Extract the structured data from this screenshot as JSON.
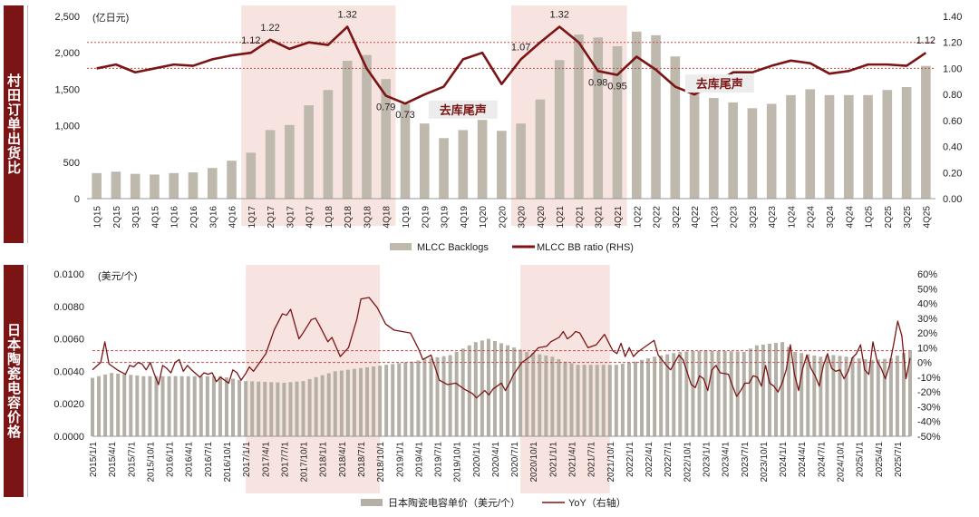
{
  "side_labels": {
    "top": "村田订单出货比",
    "bottom": "日本陶瓷电容价格"
  },
  "colors": {
    "bar": "#bfb9ad",
    "bar_top": "#b5b0a6",
    "line": "#7b1414",
    "shade": "#f7e4e0",
    "ref_line": "#c0504d",
    "side": "#7b1414"
  },
  "chart_data": [
    {
      "type": "bar+line",
      "unit_label": "(亿日元)",
      "categories": [
        "1Q15",
        "2Q15",
        "3Q15",
        "4Q15",
        "1Q16",
        "2Q16",
        "3Q16",
        "4Q16",
        "1Q17",
        "2Q17",
        "3Q17",
        "4Q17",
        "1Q18",
        "2Q18",
        "3Q18",
        "4Q18",
        "1Q19",
        "2Q19",
        "3Q19",
        "4Q19",
        "1Q20",
        "2Q20",
        "3Q20",
        "4Q20",
        "1Q21",
        "2Q21",
        "3Q21",
        "4Q21",
        "1Q22",
        "2Q22",
        "3Q22",
        "4Q22",
        "1Q23",
        "2Q23",
        "3Q23",
        "4Q23",
        "1Q24",
        "2Q24",
        "3Q24",
        "4Q24",
        "1Q25",
        "2Q25",
        "3Q25",
        "4Q25"
      ],
      "series": [
        {
          "name": "MLCC Backlogs",
          "type": "bar",
          "axis": "left",
          "values": [
            350,
            370,
            340,
            330,
            350,
            360,
            420,
            520,
            630,
            940,
            1010,
            1280,
            1490,
            1890,
            1970,
            1640,
            1300,
            1030,
            830,
            940,
            1080,
            930,
            1030,
            1360,
            1900,
            2250,
            2210,
            2090,
            2290,
            2240,
            1950,
            1560,
            1380,
            1320,
            1240,
            1300,
            1420,
            1500,
            1420,
            1420,
            1420,
            1490,
            1530,
            1820
          ]
        },
        {
          "name": "MLCC BB ratio (RHS)",
          "type": "line",
          "axis": "right",
          "values": [
            1.0,
            1.03,
            0.97,
            1.0,
            1.03,
            1.02,
            1.07,
            1.1,
            1.12,
            1.22,
            1.15,
            1.2,
            1.18,
            1.32,
            1.0,
            0.79,
            0.73,
            0.8,
            0.86,
            1.07,
            1.12,
            0.88,
            1.07,
            1.2,
            1.32,
            1.2,
            0.98,
            0.95,
            1.09,
            0.99,
            0.86,
            0.8,
            0.88,
            0.97,
            0.97,
            1.02,
            1.06,
            1.04,
            0.96,
            0.98,
            1.03,
            1.03,
            1.02,
            1.12
          ]
        }
      ],
      "data_labels": [
        {
          "index": 8,
          "text": "1.12",
          "pos": "above"
        },
        {
          "index": 9,
          "text": "1.22",
          "pos": "above"
        },
        {
          "index": 13,
          "text": "1.32",
          "pos": "above"
        },
        {
          "index": 15,
          "text": "0.79",
          "pos": "below"
        },
        {
          "index": 16,
          "text": "0.73",
          "pos": "below"
        },
        {
          "index": 22,
          "text": "1.07",
          "pos": "above"
        },
        {
          "index": 24,
          "text": "1.32",
          "pos": "above"
        },
        {
          "index": 26,
          "text": "0.98",
          "pos": "below"
        },
        {
          "index": 27,
          "text": "0.95",
          "pos": "below"
        },
        {
          "index": 43,
          "text": "1.12",
          "pos": "above"
        }
      ],
      "ylim_left": [
        0,
        2500
      ],
      "yticks_left": [
        "0",
        "500",
        "1,000",
        "1,500",
        "2,000",
        "2,500"
      ],
      "ylim_right": [
        0,
        1.4
      ],
      "yticks_right": [
        "0.00",
        "0.20",
        "0.40",
        "0.60",
        "0.80",
        "1.00",
        "1.20",
        "1.40"
      ],
      "ref_lines_right": [
        1.2,
        1.0
      ],
      "shaded_ranges": [
        [
          8,
          15
        ],
        [
          22,
          27
        ]
      ],
      "annotations": [
        {
          "text": "去库尾声",
          "index": 19.5,
          "y": 0.67
        },
        {
          "text": "去库尾声",
          "index": 32.8,
          "y": 0.87
        }
      ],
      "legend": [
        "MLCC Backlogs",
        "MLCC BB ratio (RHS)"
      ]
    },
    {
      "type": "bar+line",
      "unit_label": "(美元/个)",
      "start": "2015/1",
      "months": 129,
      "x_tick_labels": [
        "2015/1/1",
        "2015/4/1",
        "2015/7/1",
        "2015/10/1",
        "2016/1/1",
        "2016/4/1",
        "2016/7/1",
        "2016/10/1",
        "2017/1/1",
        "2017/4/1",
        "2017/7/1",
        "2017/10/1",
        "2018/1/1",
        "2018/4/1",
        "2018/7/1",
        "2018/10/1",
        "2019/1/1",
        "2019/4/1",
        "2019/7/1",
        "2019/10/1",
        "2020/1/1",
        "2020/4/1",
        "2020/7/1",
        "2020/10/1",
        "2021/1/1",
        "2021/4/1",
        "2021/7/1",
        "2021/10/1",
        "2022/1/1",
        "2022/4/1",
        "2022/7/1",
        "2022/10/1",
        "2023/1/1",
        "2023/4/1",
        "2023/7/1",
        "2023/10/1",
        "2024/1/1",
        "2024/4/1",
        "2024/7/1",
        "2024/10/1",
        "2025/1/1",
        "2025/4/1",
        "2025/7/1"
      ],
      "price_knots": [
        [
          0,
          0.0036
        ],
        [
          3,
          0.0039
        ],
        [
          8,
          0.0037
        ],
        [
          12,
          0.0037
        ],
        [
          20,
          0.0037
        ],
        [
          24,
          0.0034
        ],
        [
          30,
          0.0033
        ],
        [
          33,
          0.0034
        ],
        [
          38,
          0.004
        ],
        [
          44,
          0.0043
        ],
        [
          50,
          0.0046
        ],
        [
          56,
          0.005
        ],
        [
          60,
          0.0058
        ],
        [
          62,
          0.006
        ],
        [
          65,
          0.0056
        ],
        [
          68,
          0.0052
        ],
        [
          72,
          0.0049
        ],
        [
          74,
          0.0046
        ],
        [
          76,
          0.0044
        ],
        [
          82,
          0.0044
        ],
        [
          85,
          0.0046
        ],
        [
          88,
          0.0049
        ],
        [
          92,
          0.0052
        ],
        [
          96,
          0.0053
        ],
        [
          102,
          0.0052
        ],
        [
          104,
          0.0056
        ],
        [
          108,
          0.0058
        ],
        [
          110,
          0.0052
        ],
        [
          114,
          0.0049
        ],
        [
          116,
          0.005
        ],
        [
          122,
          0.0047
        ],
        [
          125,
          0.0048
        ],
        [
          128,
          0.0053
        ]
      ],
      "yoy_knots": [
        [
          0,
          -5
        ],
        [
          2,
          0
        ],
        [
          3,
          14
        ],
        [
          4,
          -1
        ],
        [
          6,
          -5
        ],
        [
          8,
          -8
        ],
        [
          9,
          -2
        ],
        [
          10,
          -3
        ],
        [
          11,
          0
        ],
        [
          12,
          -1
        ],
        [
          13,
          -5
        ],
        [
          14,
          0
        ],
        [
          15,
          -8
        ],
        [
          16,
          -15
        ],
        [
          17,
          -2
        ],
        [
          18,
          -4
        ],
        [
          19,
          -7
        ],
        [
          20,
          0
        ],
        [
          21,
          2
        ],
        [
          22,
          -6
        ],
        [
          23,
          -2
        ],
        [
          24,
          -5
        ],
        [
          26,
          -10
        ],
        [
          27,
          -7
        ],
        [
          28,
          -8
        ],
        [
          29,
          -7
        ],
        [
          30,
          -13
        ],
        [
          31,
          -10
        ],
        [
          33,
          -14
        ],
        [
          34,
          -5
        ],
        [
          35,
          -7
        ],
        [
          36,
          -12
        ],
        [
          37,
          -8
        ],
        [
          38,
          -3
        ],
        [
          39,
          -6
        ],
        [
          40,
          -2
        ],
        [
          42,
          6
        ],
        [
          44,
          22
        ],
        [
          46,
          33
        ],
        [
          47,
          32
        ],
        [
          48,
          36
        ],
        [
          50,
          16
        ],
        [
          51,
          20
        ],
        [
          53,
          29
        ],
        [
          54,
          30
        ],
        [
          55,
          25
        ],
        [
          57,
          14
        ],
        [
          58,
          17
        ],
        [
          60,
          4
        ],
        [
          62,
          10
        ],
        [
          64,
          29
        ],
        [
          65,
          43
        ],
        [
          67,
          44
        ],
        [
          69,
          37
        ],
        [
          71,
          26
        ],
        [
          73,
          22
        ],
        [
          75,
          21
        ],
        [
          77,
          20
        ],
        [
          79,
          9
        ],
        [
          80,
          2
        ],
        [
          82,
          5
        ],
        [
          84,
          -12
        ],
        [
          86,
          -15
        ],
        [
          88,
          -14
        ],
        [
          90,
          -18
        ],
        [
          92,
          -21
        ],
        [
          93,
          -24
        ],
        [
          95,
          -19
        ],
        [
          96,
          -22
        ],
        [
          97,
          -18
        ],
        [
          99,
          -14
        ],
        [
          100,
          -19
        ],
        [
          101,
          -14
        ],
        [
          102,
          -8
        ],
        [
          104,
          0
        ],
        [
          106,
          4
        ],
        [
          108,
          10
        ],
        [
          110,
          11
        ],
        [
          111,
          14
        ],
        [
          113,
          17
        ],
        [
          114,
          21
        ],
        [
          115,
          16
        ],
        [
          116,
          18
        ],
        [
          117,
          21
        ],
        [
          118,
          20
        ],
        [
          120,
          10
        ],
        [
          122,
          12
        ],
        [
          124,
          19
        ],
        [
          126,
          8
        ],
        [
          127,
          6
        ],
        [
          128,
          13
        ],
        [
          129,
          4
        ],
        [
          130,
          10
        ],
        [
          131,
          4
        ],
        [
          132,
          7
        ],
        [
          134,
          11
        ],
        [
          136,
          15
        ],
        [
          137,
          5
        ],
        [
          139,
          -2
        ],
        [
          140,
          -5
        ],
        [
          142,
          5
        ],
        [
          143,
          2
        ],
        [
          145,
          -15
        ],
        [
          146,
          -17
        ],
        [
          147,
          -9
        ],
        [
          148,
          -11
        ],
        [
          149,
          -19
        ],
        [
          150,
          -5
        ],
        [
          151,
          -2
        ],
        [
          152,
          -7
        ],
        [
          154,
          -8
        ],
        [
          155,
          -16
        ],
        [
          156,
          -23
        ],
        [
          157,
          -19
        ],
        [
          158,
          -14
        ],
        [
          159,
          -14
        ],
        [
          160,
          -9
        ],
        [
          161,
          -10
        ],
        [
          162,
          -16
        ],
        [
          163,
          -2
        ],
        [
          164,
          -14
        ],
        [
          165,
          -16
        ],
        [
          166,
          -20
        ],
        [
          167,
          -14
        ],
        [
          168,
          -5
        ],
        [
          169,
          12
        ],
        [
          170,
          -8
        ],
        [
          171,
          -19
        ],
        [
          172,
          -4
        ],
        [
          173,
          5
        ],
        [
          174,
          -4
        ],
        [
          175,
          -9
        ],
        [
          176,
          -16
        ],
        [
          177,
          -2
        ],
        [
          178,
          6
        ],
        [
          179,
          -4
        ],
        [
          180,
          -6
        ],
        [
          181,
          -5
        ],
        [
          182,
          -11
        ],
        [
          183,
          -6
        ],
        [
          184,
          3
        ],
        [
          185,
          6
        ],
        [
          186,
          12
        ],
        [
          187,
          -5
        ],
        [
          188,
          -8
        ],
        [
          189,
          14
        ],
        [
          190,
          1
        ],
        [
          191,
          -4
        ],
        [
          192,
          -11
        ],
        [
          193,
          -2
        ],
        [
          194,
          12
        ],
        [
          195,
          28
        ],
        [
          196,
          18
        ],
        [
          197,
          -11
        ],
        [
          198,
          3
        ]
      ],
      "ylim_left": [
        0,
        0.01
      ],
      "yticks_left": [
        "0.0000",
        "0.0020",
        "0.0040",
        "0.0060",
        "0.0080",
        "0.0100"
      ],
      "ylim_right": [
        -50,
        60
      ],
      "yticks_right": [
        "-50%",
        "-40%",
        "-30%",
        "-20%",
        "-10%",
        "0%",
        "10%",
        "20%",
        "30%",
        "40%",
        "50%",
        "60%"
      ],
      "ref_lines_right": [
        8,
        0
      ],
      "shaded_ranges": [
        [
          24,
          45
        ],
        [
          67,
          81
        ]
      ],
      "legend": [
        "日本陶瓷电容单价（美元/个）",
        "YoY（右轴）"
      ]
    }
  ]
}
